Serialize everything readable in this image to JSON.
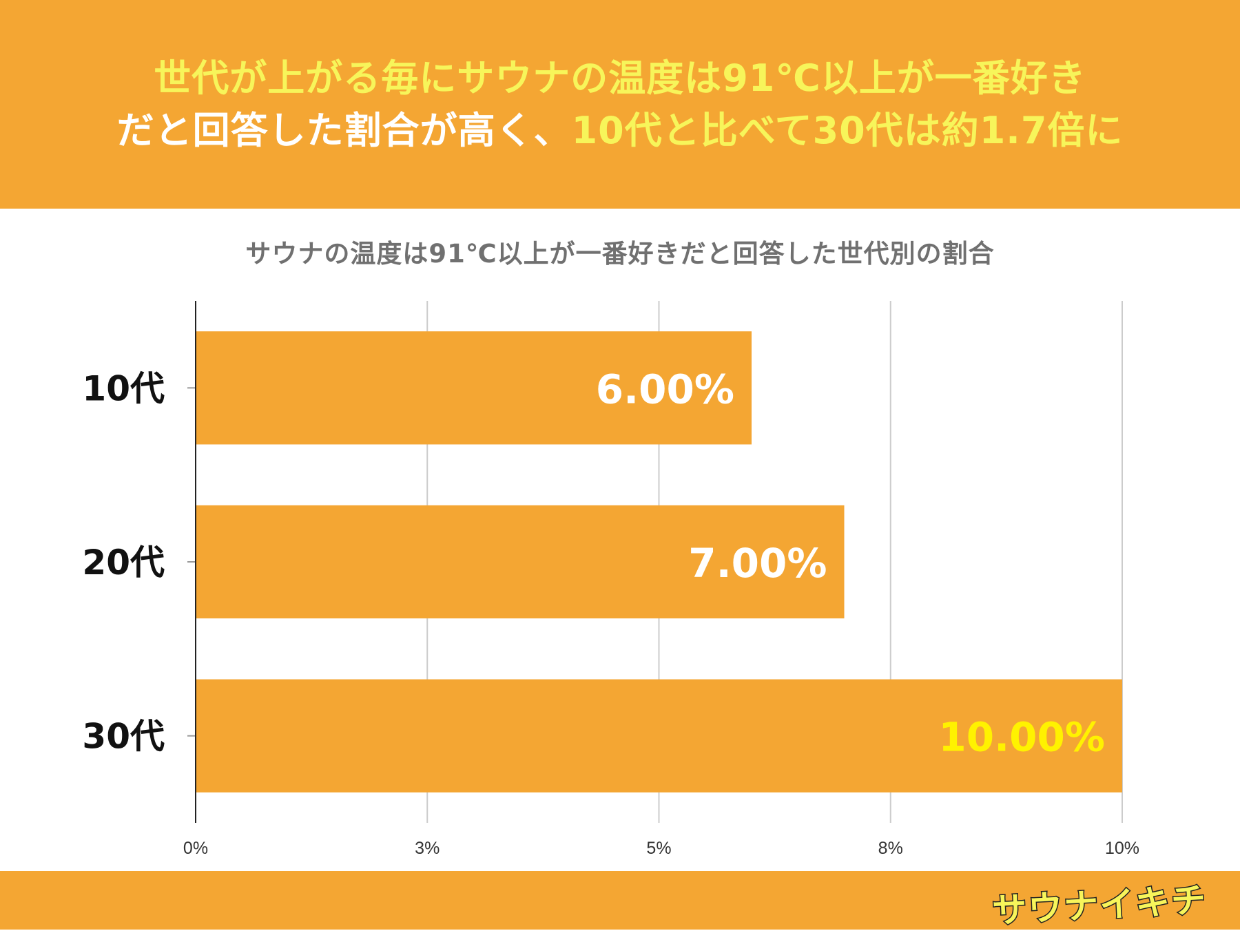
{
  "header": {
    "line1": [
      {
        "text": "世代が上がる毎にサウナの温度は91℃以上が一番好き",
        "style": "hl"
      }
    ],
    "line2": [
      {
        "text": "だと回答した割合が高く、",
        "style": "wt"
      },
      {
        "text": "10代と比べて30代は約1.7倍に",
        "style": "hl"
      }
    ]
  },
  "logo": "サウナイキチ",
  "colors": {
    "background_orange": "#F4A633",
    "bar": "#F4A633",
    "highlight_yellow": "#F7F55A",
    "label_white": "#ffffff",
    "label_yellow": "#FFF200",
    "title_gray": "#707070"
  },
  "chart_data": {
    "type": "bar",
    "orientation": "horizontal",
    "title": "サウナの温度は91℃以上が一番好きだと回答した世代別の割合",
    "categories": [
      "10代",
      "20代",
      "30代"
    ],
    "values": [
      6.0,
      7.0,
      10.0
    ],
    "data_labels": [
      "6.00%",
      "7.00%",
      "10.00%"
    ],
    "data_label_highlight": [
      false,
      false,
      true
    ],
    "xlabel": "",
    "ylabel": "",
    "xlim": [
      0,
      10
    ],
    "x_ticks": [
      "0%",
      "3%",
      "5%",
      "8%",
      "10%"
    ],
    "grid": true,
    "legend": "none"
  }
}
